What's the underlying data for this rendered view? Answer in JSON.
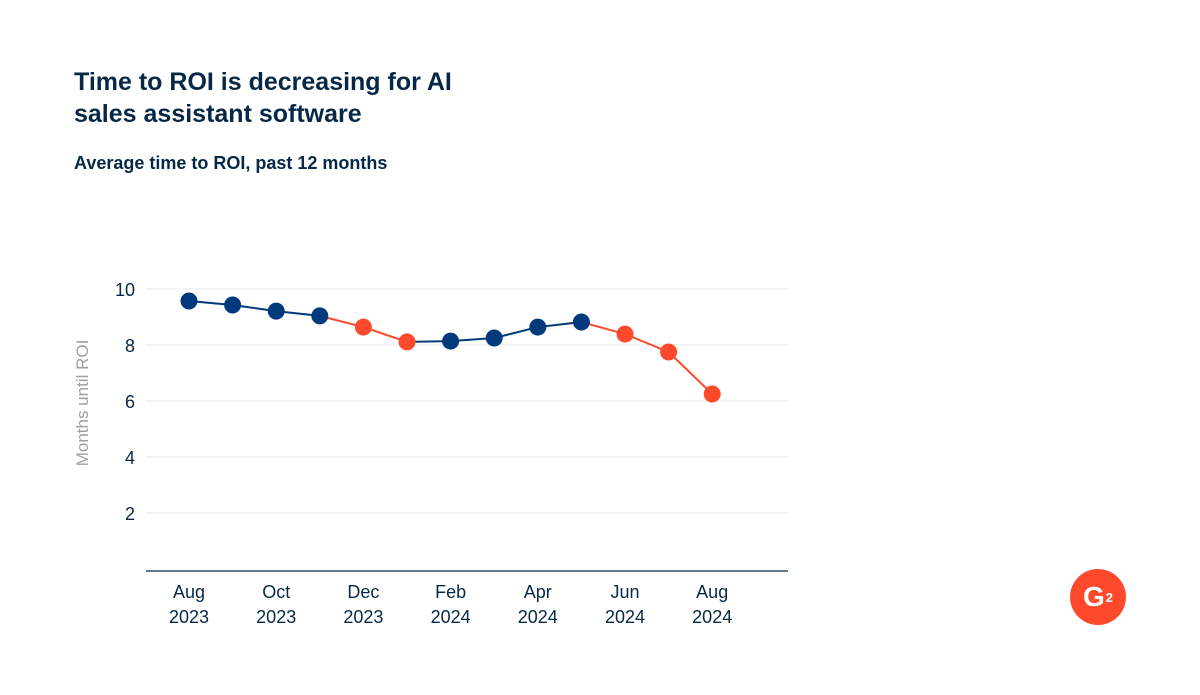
{
  "title": "Time to ROI is decreasing for AI sales assistant software",
  "subtitle": "Average time to ROI, past 12 months",
  "logo": "G2",
  "colors": {
    "primary": "#003a7d",
    "highlight": "#ff492c",
    "text": "#062846"
  },
  "chart_data": {
    "type": "line",
    "ylabel": "Months until ROI",
    "ylim": [
      0,
      10
    ],
    "yticks": [
      2,
      4,
      6,
      8,
      10
    ],
    "grid": true,
    "x": [
      "Aug 2023",
      "Sep 2023",
      "Oct 2023",
      "Nov 2023",
      "Dec 2023",
      "Jan 2024",
      "Feb 2024",
      "Mar 2024",
      "Apr 2024",
      "May 2024",
      "Jun 2024",
      "Jul 2024",
      "Aug 2024"
    ],
    "xtick_labels": [
      [
        "Aug",
        "2023"
      ],
      [
        "Oct",
        "2023"
      ],
      [
        "Dec",
        "2023"
      ],
      [
        "Feb",
        "2024"
      ],
      [
        "Apr",
        "2024"
      ],
      [
        "Jun",
        "2024"
      ],
      [
        "Aug",
        "2024"
      ]
    ],
    "xtick_index": [
      0,
      2,
      4,
      6,
      8,
      10,
      12
    ],
    "values": [
      9.57,
      9.43,
      9.21,
      9.04,
      8.64,
      8.11,
      8.14,
      8.25,
      8.64,
      8.82,
      8.39,
      7.75,
      6.25
    ],
    "highlighted": [
      false,
      false,
      false,
      false,
      true,
      true,
      false,
      false,
      false,
      false,
      true,
      true,
      true
    ]
  }
}
